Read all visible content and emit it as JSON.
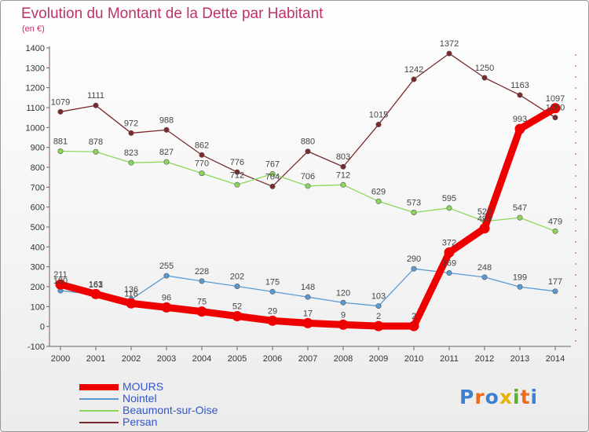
{
  "title": "Evolution du Montant de la Dette par Habitant",
  "unit": "(en €)",
  "logo": "Proxiti",
  "chart_data": {
    "type": "line",
    "x": [
      2000,
      2001,
      2002,
      2003,
      2004,
      2005,
      2006,
      2007,
      2008,
      2009,
      2010,
      2011,
      2012,
      2013,
      2014
    ],
    "ylim": [
      -100,
      1400
    ],
    "yticks": [
      -100,
      0,
      100,
      200,
      300,
      400,
      500,
      600,
      700,
      800,
      900,
      1000,
      1100,
      1200,
      1300,
      1400
    ],
    "grid": false,
    "legend_position": "bottom-left",
    "series": [
      {
        "name": "MOURS",
        "color": "#ee0000",
        "values": [
          211,
          163,
          116,
          96,
          75,
          52,
          29,
          17,
          9,
          2,
          2,
          372,
          493,
          993,
          1097
        ],
        "labels": [
          "211",
          "163",
          "116",
          "96",
          "75",
          "52",
          "29",
          "17",
          "9",
          "2",
          "2",
          "372",
          "493",
          "993",
          "1097"
        ]
      },
      {
        "name": "Nointel",
        "color": "#5a9bd5",
        "values": [
          180,
          161,
          136,
          255,
          228,
          202,
          175,
          148,
          120,
          103,
          290,
          269,
          248,
          199,
          177
        ],
        "labels": [
          "180",
          "161",
          "136",
          "255",
          "228",
          "202",
          "175",
          "148",
          "120",
          "103",
          "290",
          "269",
          "248",
          "199",
          "177"
        ]
      },
      {
        "name": "Beaumont-sur-Oise",
        "color": "#8cd75a",
        "values": [
          881,
          878,
          823,
          827,
          770,
          712,
          767,
          706,
          712,
          629,
          573,
          595,
          528,
          547,
          479
        ],
        "labels": [
          "881",
          "878",
          "823",
          "827",
          "770",
          "712",
          "767",
          "706",
          "712",
          "629",
          "573",
          "595",
          "528",
          "547",
          "479"
        ]
      },
      {
        "name": "Persan",
        "color": "#7a2a2a",
        "values": [
          1079,
          1111,
          972,
          988,
          862,
          776,
          704,
          880,
          803,
          1015,
          1242,
          1372,
          1250,
          1163,
          1050
        ],
        "labels": [
          "1079",
          "1111",
          "972",
          "988",
          "862",
          "776",
          "704",
          "880",
          "803",
          "1015",
          "1242",
          "1372",
          "1250",
          "1163",
          "1050"
        ]
      }
    ]
  }
}
